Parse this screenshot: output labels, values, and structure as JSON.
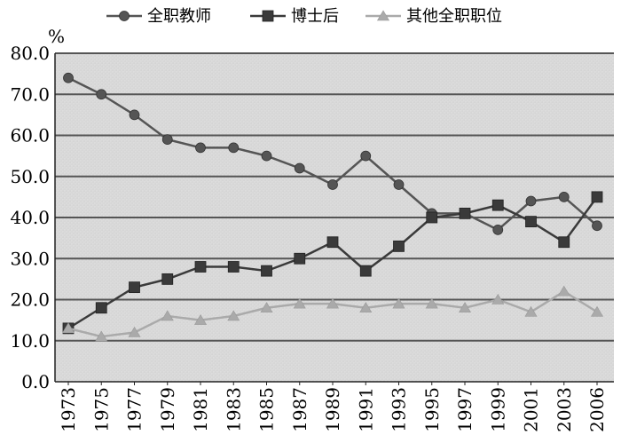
{
  "chart_data": {
    "type": "line",
    "title": "",
    "xlabel": "",
    "ylabel": "%",
    "ylim": [
      0,
      80
    ],
    "yticks": [
      "0.0",
      "10.0",
      "20.0",
      "30.0",
      "40.0",
      "50.0",
      "60.0",
      "70.0",
      "80.0"
    ],
    "grid": "horizontal",
    "legend_position": "top",
    "categories": [
      "1973",
      "1975",
      "1977",
      "1979",
      "1981",
      "1983",
      "1985",
      "1987",
      "1989",
      "1991",
      "1993",
      "1995",
      "1997",
      "1999",
      "2001",
      "2003",
      "2006"
    ],
    "series": [
      {
        "name": "全职教师",
        "marker": "circle",
        "color": "#555555",
        "values": [
          74,
          70,
          65,
          59,
          57,
          57,
          55,
          52,
          48,
          55,
          48,
          41,
          41,
          37,
          44,
          45,
          38
        ]
      },
      {
        "name": "博士后",
        "marker": "square",
        "color": "#3a3a3a",
        "values": [
          13,
          18,
          23,
          25,
          28,
          28,
          27,
          30,
          34,
          27,
          33,
          40,
          41,
          43,
          39,
          34,
          45
        ]
      },
      {
        "name": "其他全职职位",
        "marker": "triangle",
        "color": "#aaaaaa",
        "values": [
          13,
          11,
          12,
          16,
          15,
          16,
          18,
          19,
          19,
          18,
          19,
          19,
          18,
          20,
          17,
          22,
          17
        ]
      }
    ]
  }
}
